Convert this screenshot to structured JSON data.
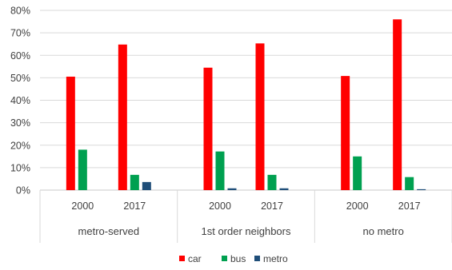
{
  "chart_data": {
    "type": "bar",
    "title": "",
    "xlabel": "",
    "ylabel": "",
    "ylim": [
      0,
      0.8
    ],
    "y_ticks": [
      0,
      0.1,
      0.2,
      0.3,
      0.4,
      0.5,
      0.6,
      0.7,
      0.8
    ],
    "y_tick_labels": [
      "0%",
      "10%",
      "20%",
      "30%",
      "40%",
      "50%",
      "60%",
      "70%",
      "80%"
    ],
    "gridlines": true,
    "legend_position": "bottom",
    "groups": [
      "metro-served",
      "1st order neighbors",
      "no metro"
    ],
    "years": [
      "2000",
      "2017"
    ],
    "categories": [
      {
        "group": "metro-served",
        "year": "2000"
      },
      {
        "group": "metro-served",
        "year": "2017"
      },
      {
        "group": "1st order neighbors",
        "year": "2000"
      },
      {
        "group": "1st order neighbors",
        "year": "2017"
      },
      {
        "group": "no metro",
        "year": "2000"
      },
      {
        "group": "no metro",
        "year": "2017"
      }
    ],
    "series": [
      {
        "name": "car",
        "color": "#ff0000",
        "values": [
          0.505,
          0.648,
          0.545,
          0.653,
          0.508,
          0.76
        ]
      },
      {
        "name": "bus",
        "color": "#00a050",
        "values": [
          0.18,
          0.068,
          0.172,
          0.068,
          0.15,
          0.058
        ]
      },
      {
        "name": "metro",
        "color": "#1f4e79",
        "values": [
          0.0,
          0.036,
          0.008,
          0.008,
          0.0,
          0.004
        ]
      }
    ]
  }
}
